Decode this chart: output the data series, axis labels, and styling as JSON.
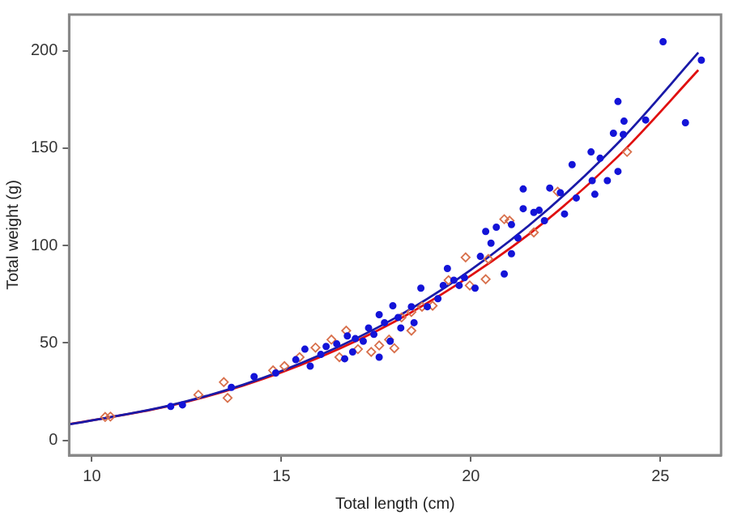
{
  "chart_data": {
    "type": "scatter",
    "xlabel": "Total length (cm)",
    "ylabel": "Total weight (g)",
    "xlim": [
      9.4,
      26.6
    ],
    "ylim": [
      -7.6,
      218.5
    ],
    "xticks": [
      10,
      15,
      20,
      25
    ],
    "yticks": [
      0,
      50,
      100,
      150,
      200
    ],
    "grid": false,
    "legend": false,
    "series": [
      {
        "marker": "circle",
        "color": "#1414d8",
        "x": [
          12.08,
          12.39,
          14.28,
          13.68,
          14.85,
          15.38,
          15.76,
          16.04,
          16.18,
          16.46,
          16.67,
          16.95,
          17.16,
          17.3,
          17.44,
          17.58,
          17.72,
          17.87,
          18.08,
          18.15,
          18.43,
          18.68,
          18.85,
          19.13,
          19.38,
          19.55,
          19.83,
          20.11,
          20.25,
          20.39,
          20.53,
          20.88,
          21.07,
          21.07,
          21.38,
          21.38,
          21.66,
          21.94,
          22.08,
          22.47,
          22.67,
          22.78,
          23.17,
          23.2,
          23.27,
          23.41,
          23.6,
          23.76,
          23.88,
          23.88,
          24.04,
          24.02,
          24.61,
          25.07,
          25.66,
          26.08,
          21.8,
          22.36,
          20.67,
          21.24,
          19.69,
          18.5,
          16.88,
          15.62,
          17.94,
          19.27,
          16.74,
          17.58
        ],
        "values": [
          17.4,
          18.2,
          32.7,
          27.2,
          34.6,
          41.4,
          38.1,
          44.1,
          48.2,
          49.5,
          41.9,
          52.2,
          50.9,
          57.7,
          54.4,
          64.5,
          60.4,
          50.9,
          63.1,
          57.7,
          68.6,
          78.1,
          68.6,
          72.7,
          88.2,
          82.2,
          83.5,
          78.1,
          94.4,
          107.2,
          101.2,
          85.4,
          110.7,
          95.8,
          129,
          118.9,
          117,
          112.7,
          129.5,
          116.2,
          141.5,
          124.4,
          148,
          133.3,
          126.3,
          144.8,
          133.3,
          157.6,
          173.9,
          138,
          163.8,
          157,
          164.4,
          204.6,
          163,
          195.1,
          118.1,
          127.1,
          109.4,
          103.9,
          79.5,
          60.4,
          45.4,
          46.8,
          69.1,
          79.5,
          53.6,
          42.7
        ]
      },
      {
        "marker": "diamond",
        "color": "#d8704c",
        "x": [
          10.35,
          10.49,
          12.81,
          13.48,
          13.58,
          14.78,
          15.08,
          15.9,
          16.32,
          16.53,
          16.71,
          17.02,
          17.58,
          17.84,
          17.98,
          18.17,
          18.43,
          18.71,
          18.99,
          19.41,
          19.86,
          19.97,
          20.39,
          20.46,
          20.88,
          21.02,
          21.66,
          22.29,
          24.12,
          15.48,
          17.37,
          18.43
        ],
        "values": [
          12,
          12.2,
          23.4,
          29.9,
          21.8,
          35.9,
          38.1,
          47.6,
          51.7,
          42.7,
          56.3,
          46.8,
          48.7,
          51.7,
          47.3,
          63.1,
          65.9,
          68.6,
          69.1,
          82.2,
          93.9,
          79.5,
          82.7,
          93.1,
          113.5,
          112.7,
          106.7,
          127.6,
          148,
          42.7,
          45.4,
          56.3
        ]
      },
      {
        "type": "line",
        "marker": "none",
        "line_style": "solid",
        "color": "#1a1aa8",
        "x": [
          9.4,
          12,
          14,
          16,
          18,
          20,
          22,
          24,
          26
        ],
        "values": [
          8.2,
          17.7,
          28.6,
          43.6,
          62.8,
          87.5,
          118,
          155,
          199
        ]
      },
      {
        "type": "line",
        "marker": "none",
        "line_style": "solid",
        "color": "#e01010",
        "x": [
          9.4,
          12,
          14,
          16,
          18,
          20,
          22,
          24,
          26
        ],
        "values": [
          8.3,
          17.5,
          28.2,
          42.6,
          61.1,
          84.6,
          113,
          148,
          190
        ]
      }
    ]
  }
}
